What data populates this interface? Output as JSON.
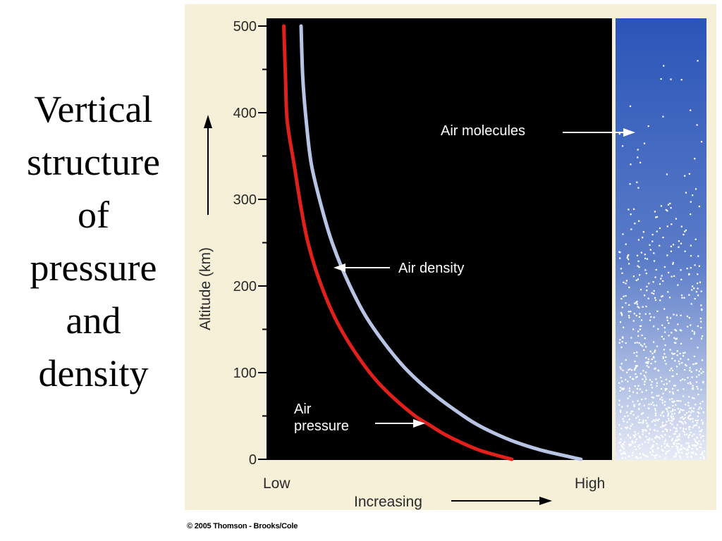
{
  "slide": {
    "title_lines": [
      "Vertical",
      "structure",
      "of",
      "pressure",
      "and",
      "density"
    ],
    "credit": "© 2005 Thomson - Brooks/Cole"
  },
  "colors": {
    "plot_background": "#000000",
    "figure_background": "#f6f0d8",
    "pressure_line": "#e0201b",
    "density_line": "#b8c4e4",
    "panel_top": "#2a55b8",
    "panel_bottom": "#e8ecf6"
  },
  "chart_data": {
    "type": "line",
    "title": "",
    "ylabel": "Altitude (km)",
    "ylim": [
      0,
      500
    ],
    "yticks": [
      0,
      100,
      200,
      300,
      400,
      500
    ],
    "xlabel": "Increasing",
    "x_low_label": "Low",
    "x_high_label": "High",
    "xlim": [
      0,
      1
    ],
    "grid": false,
    "series": [
      {
        "name": "Air pressure",
        "color": "#e0201b",
        "points": [
          {
            "x": 0.71,
            "y": 0
          },
          {
            "x": 0.62,
            "y": 10
          },
          {
            "x": 0.56,
            "y": 20
          },
          {
            "x": 0.51,
            "y": 30
          },
          {
            "x": 0.47,
            "y": 40
          },
          {
            "x": 0.43,
            "y": 50
          },
          {
            "x": 0.37,
            "y": 70
          },
          {
            "x": 0.32,
            "y": 90
          },
          {
            "x": 0.28,
            "y": 110
          },
          {
            "x": 0.23,
            "y": 140
          },
          {
            "x": 0.19,
            "y": 170
          },
          {
            "x": 0.15,
            "y": 210
          },
          {
            "x": 0.12,
            "y": 250
          },
          {
            "x": 0.1,
            "y": 290
          },
          {
            "x": 0.08,
            "y": 340
          },
          {
            "x": 0.06,
            "y": 390
          },
          {
            "x": 0.055,
            "y": 440
          },
          {
            "x": 0.05,
            "y": 500
          }
        ]
      },
      {
        "name": "Air density",
        "color": "#b8c4e4",
        "points": [
          {
            "x": 0.91,
            "y": 0
          },
          {
            "x": 0.8,
            "y": 10
          },
          {
            "x": 0.72,
            "y": 20
          },
          {
            "x": 0.66,
            "y": 30
          },
          {
            "x": 0.61,
            "y": 40
          },
          {
            "x": 0.57,
            "y": 50
          },
          {
            "x": 0.5,
            "y": 70
          },
          {
            "x": 0.44,
            "y": 90
          },
          {
            "x": 0.39,
            "y": 110
          },
          {
            "x": 0.33,
            "y": 140
          },
          {
            "x": 0.28,
            "y": 170
          },
          {
            "x": 0.23,
            "y": 210
          },
          {
            "x": 0.19,
            "y": 250
          },
          {
            "x": 0.16,
            "y": 290
          },
          {
            "x": 0.13,
            "y": 340
          },
          {
            "x": 0.115,
            "y": 390
          },
          {
            "x": 0.105,
            "y": 440
          },
          {
            "x": 0.1,
            "y": 500
          }
        ]
      }
    ],
    "annotations": [
      {
        "id": "air-density",
        "lines": [
          "Air density"
        ],
        "target": {
          "x": 0.2,
          "y": 218
        }
      },
      {
        "id": "air-pressure",
        "lines": [
          "Air",
          "pressure"
        ],
        "target": {
          "x": 0.49,
          "y": 42
        }
      },
      {
        "id": "air-molecules",
        "lines": [
          "Air molecules"
        ]
      }
    ]
  }
}
